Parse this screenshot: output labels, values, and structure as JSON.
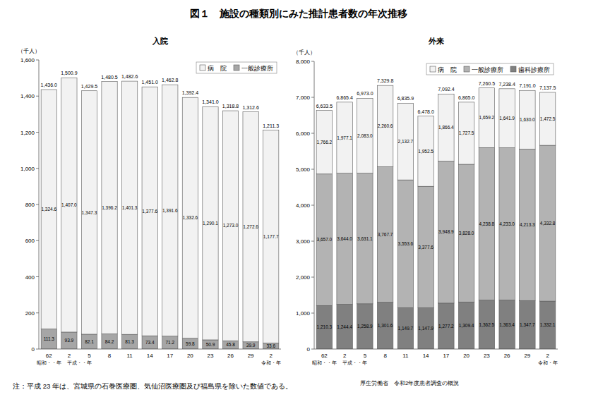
{
  "title": "図１　施設の種類別にみた推計患者数の年次推移",
  "note": "注：平成 23 年は、宮城県の石巻医療圏、気仙沼医療圏及び福島県を除いた数値である。",
  "source": "厚生労働省　令和2年度患者調査の概況",
  "chart_data": [
    {
      "type": "bar",
      "title": "入院",
      "y_label": "（千人）",
      "stacked": true,
      "data_labels": true,
      "grid": false,
      "legend": "top-right",
      "categories": [
        "62",
        "2",
        "5",
        "8",
        "11",
        "14",
        "17",
        "20",
        "23",
        "26",
        "29",
        "2"
      ],
      "era_labels": [
        "昭和・・年",
        "平成・・年",
        null,
        null,
        null,
        null,
        null,
        null,
        null,
        null,
        null,
        "令和・年"
      ],
      "ylim": [
        0,
        1600
      ],
      "yticks": [
        0,
        200,
        400,
        600,
        800,
        {
          "value": 1000,
          "label": "1,000"
        },
        {
          "value": 1200,
          "label": "1,200"
        },
        {
          "value": 1400,
          "label": "1,400"
        },
        {
          "value": 1600,
          "label": "1,600"
        }
      ],
      "series": [
        {
          "name": "一般診療所",
          "color": "#a6a6a6",
          "values": [
            111.3,
            93.9,
            82.1,
            84.2,
            81.3,
            73.4,
            71.2,
            59.8,
            50.9,
            45.8,
            39.9,
            33.6
          ]
        },
        {
          "name": "病　院",
          "color": "#f2f2f2",
          "values": [
            1324.6,
            1407.0,
            1347.3,
            1396.2,
            1401.3,
            1377.6,
            1391.6,
            1332.6,
            1290.1,
            1273.0,
            1272.6,
            1177.7
          ],
          "value_labels": [
            "1,324.6",
            "1,407.0",
            "1,347.3",
            "1,396.2",
            "1,401.3",
            "1,377.6",
            "1,391.6",
            "1,332.6",
            "1,290.1",
            "1,273.0",
            "1,272.6",
            "1,177.7"
          ]
        }
      ],
      "totals": [
        1436.0,
        1500.9,
        1429.5,
        1480.5,
        1482.6,
        1451.0,
        1462.8,
        1392.4,
        1341.0,
        1318.8,
        1312.6,
        1211.3
      ],
      "total_labels": [
        "1,436.0",
        "1,500.9",
        "1,429.5",
        "1,480.5",
        "1,482.6",
        "1,451.0",
        "1,462.8",
        "1,392.4",
        "1,341.0",
        "1,318.8",
        "1,312.6",
        "1,211.3"
      ]
    },
    {
      "type": "bar",
      "title": "外来",
      "y_label": "（千人）",
      "stacked": true,
      "data_labels": true,
      "grid": false,
      "legend": "top-right",
      "categories": [
        "62",
        "2",
        "5",
        "8",
        "11",
        "14",
        "17",
        "20",
        "23",
        "26",
        "29",
        "2"
      ],
      "era_labels": [
        "昭和・・年",
        "平成・・年",
        null,
        null,
        null,
        null,
        null,
        null,
        null,
        null,
        null,
        "令和・年"
      ],
      "ylim": [
        0,
        8000
      ],
      "yticks": [
        0,
        {
          "value": 1000,
          "label": "1,000"
        },
        {
          "value": 2000,
          "label": "2,000"
        },
        {
          "value": 3000,
          "label": "3,000"
        },
        {
          "value": 4000,
          "label": "4,000"
        },
        {
          "value": 5000,
          "label": "5,000"
        },
        {
          "value": 6000,
          "label": "6,000"
        },
        {
          "value": 7000,
          "label": "7,000"
        },
        {
          "value": 8000,
          "label": "8,000"
        }
      ],
      "series": [
        {
          "name": "歯科診療所",
          "color": "#808080",
          "values": [
            1210.3,
            1244.4,
            1258.9,
            1301.6,
            1149.7,
            1147.9,
            1277.2,
            1309.4,
            1362.5,
            1363.4,
            1347.7,
            1332.1
          ],
          "value_labels": [
            "1,210.3",
            "1,244.4",
            "1,258.9",
            "1,301.6",
            "1,149.7",
            "1,147.9",
            "1,277.2",
            "1,309.4",
            "1,362.5",
            "1,363.4",
            "1,347.7",
            "1,332.1"
          ]
        },
        {
          "name": "一般診療所",
          "color": "#b3b3b3",
          "values": [
            3657.0,
            3644.0,
            3631.1,
            3767.7,
            3553.6,
            3377.6,
            3948.9,
            3828.0,
            4238.8,
            4233.0,
            4213.3,
            4332.8
          ],
          "value_labels": [
            "3,657.0",
            "3,644.0",
            "3,631.1",
            "3,767.7",
            "3,553.6",
            "3,377.6",
            "3,948.9",
            "3,828.0",
            "4,238.8",
            "4,233.0",
            "4,213.3",
            "4,332.8"
          ]
        },
        {
          "name": "病　院",
          "color": "#f2f2f2",
          "values": [
            1766.2,
            1977.1,
            2083.0,
            2260.6,
            2132.7,
            1952.5,
            1866.4,
            1727.5,
            1659.2,
            1641.9,
            1630.0,
            1472.5
          ],
          "value_labels": [
            "1,766.2",
            "1,977.1",
            "2,083.0",
            "2,260.6",
            "2,132.7",
            "1,952.5",
            "1,866.4",
            "1,727.5",
            "1,659.2",
            "1,641.9",
            "1,630.0",
            "1,472.5"
          ]
        }
      ],
      "totals": [
        6633.5,
        6865.4,
        6973.0,
        7329.8,
        6835.9,
        6478.0,
        7092.4,
        6865.0,
        7260.5,
        7238.4,
        7191.0,
        7137.5
      ],
      "total_labels": [
        "6,633.5",
        "6,865.4",
        "6,973.0",
        "7,329.8",
        "6,835.9",
        "6,478.0",
        "7,092.4",
        "6,865.0",
        "7,260.5",
        "7,238.4",
        "7,191.0",
        "7,137.5"
      ]
    }
  ]
}
